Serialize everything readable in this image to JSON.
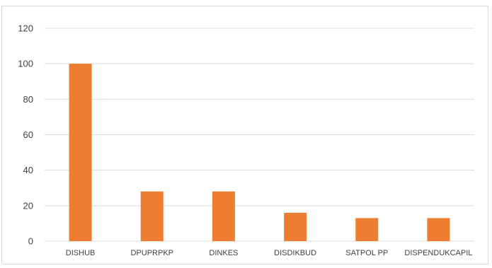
{
  "chart_data": {
    "type": "bar",
    "categories": [
      "DISHUB",
      "DPUPRPKP",
      "DINKES",
      "DISDIKBUD",
      "SATPOL PP",
      "DISPENDUKCAPIL"
    ],
    "values": [
      100,
      28,
      28,
      16,
      13,
      13
    ],
    "ylim": [
      0,
      120
    ],
    "yticks": [
      0,
      20,
      40,
      60,
      80,
      100,
      120
    ],
    "grid": true,
    "bar_color": "#ED7D31",
    "grid_color": "#D9D9D9",
    "title": "",
    "xlabel": "",
    "ylabel": ""
  }
}
